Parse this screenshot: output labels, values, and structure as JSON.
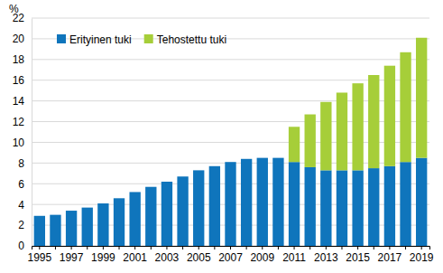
{
  "chart_data": {
    "type": "bar",
    "stacked": true,
    "grid": true,
    "legend": "upper left",
    "y_label": "%",
    "categories": [
      "1995",
      null,
      "1997",
      null,
      "1999",
      null,
      "2001",
      null,
      "2003",
      null,
      "2005",
      null,
      "2007",
      null,
      "2009",
      null,
      "2011",
      null,
      "2013",
      null,
      "2015",
      null,
      "2017",
      null,
      "2019"
    ],
    "series": [
      {
        "name": "Erityinen tuki",
        "color": "#0f75bc",
        "values": [
          2.9,
          3.0,
          3.4,
          3.7,
          4.1,
          4.6,
          5.2,
          5.7,
          6.2,
          6.7,
          7.3,
          7.7,
          8.1,
          8.4,
          8.5,
          8.5,
          8.1,
          7.6,
          7.3,
          7.3,
          7.3,
          7.5,
          7.7,
          8.1,
          8.5
        ]
      },
      {
        "name": "Tehostettu tuki",
        "color": "#a6ce39",
        "values": [
          null,
          null,
          null,
          null,
          null,
          null,
          null,
          null,
          null,
          null,
          null,
          null,
          null,
          null,
          null,
          null,
          3.4,
          5.1,
          6.6,
          7.5,
          8.4,
          9.0,
          9.7,
          10.6,
          11.6
        ]
      }
    ],
    "ylim": [
      0,
      22
    ],
    "yticks": [
      0,
      2,
      4,
      6,
      8,
      10,
      12,
      14,
      16,
      18,
      20,
      22
    ]
  }
}
